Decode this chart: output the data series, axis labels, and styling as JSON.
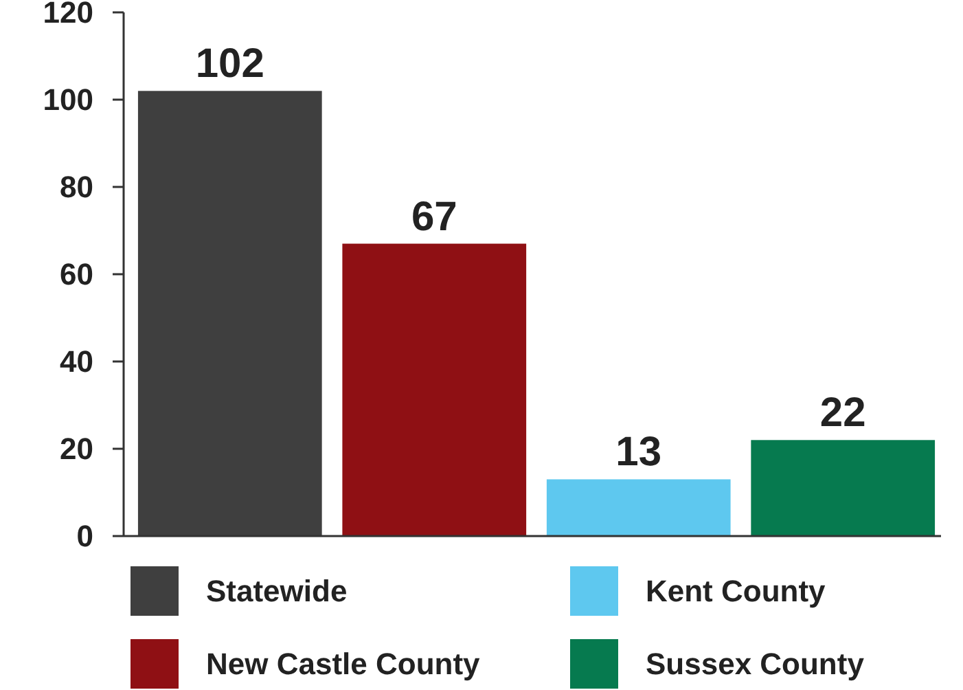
{
  "chart_data": {
    "type": "bar",
    "categories": [
      null
    ],
    "series": [
      {
        "name": "Statewide",
        "color": "#3f3f3f",
        "values": [
          102
        ]
      },
      {
        "name": "New Castle County",
        "color": "#8f1014",
        "values": [
          67
        ]
      },
      {
        "name": "Kent County",
        "color": "#5ec8ef",
        "values": [
          13
        ]
      },
      {
        "name": "Sussex County",
        "color": "#067a4f",
        "values": [
          22
        ]
      }
    ],
    "ylim": [
      0,
      120
    ],
    "yticks": [
      0,
      20,
      40,
      60,
      80,
      100,
      120
    ],
    "data_labels": true,
    "legend": "bottom"
  }
}
